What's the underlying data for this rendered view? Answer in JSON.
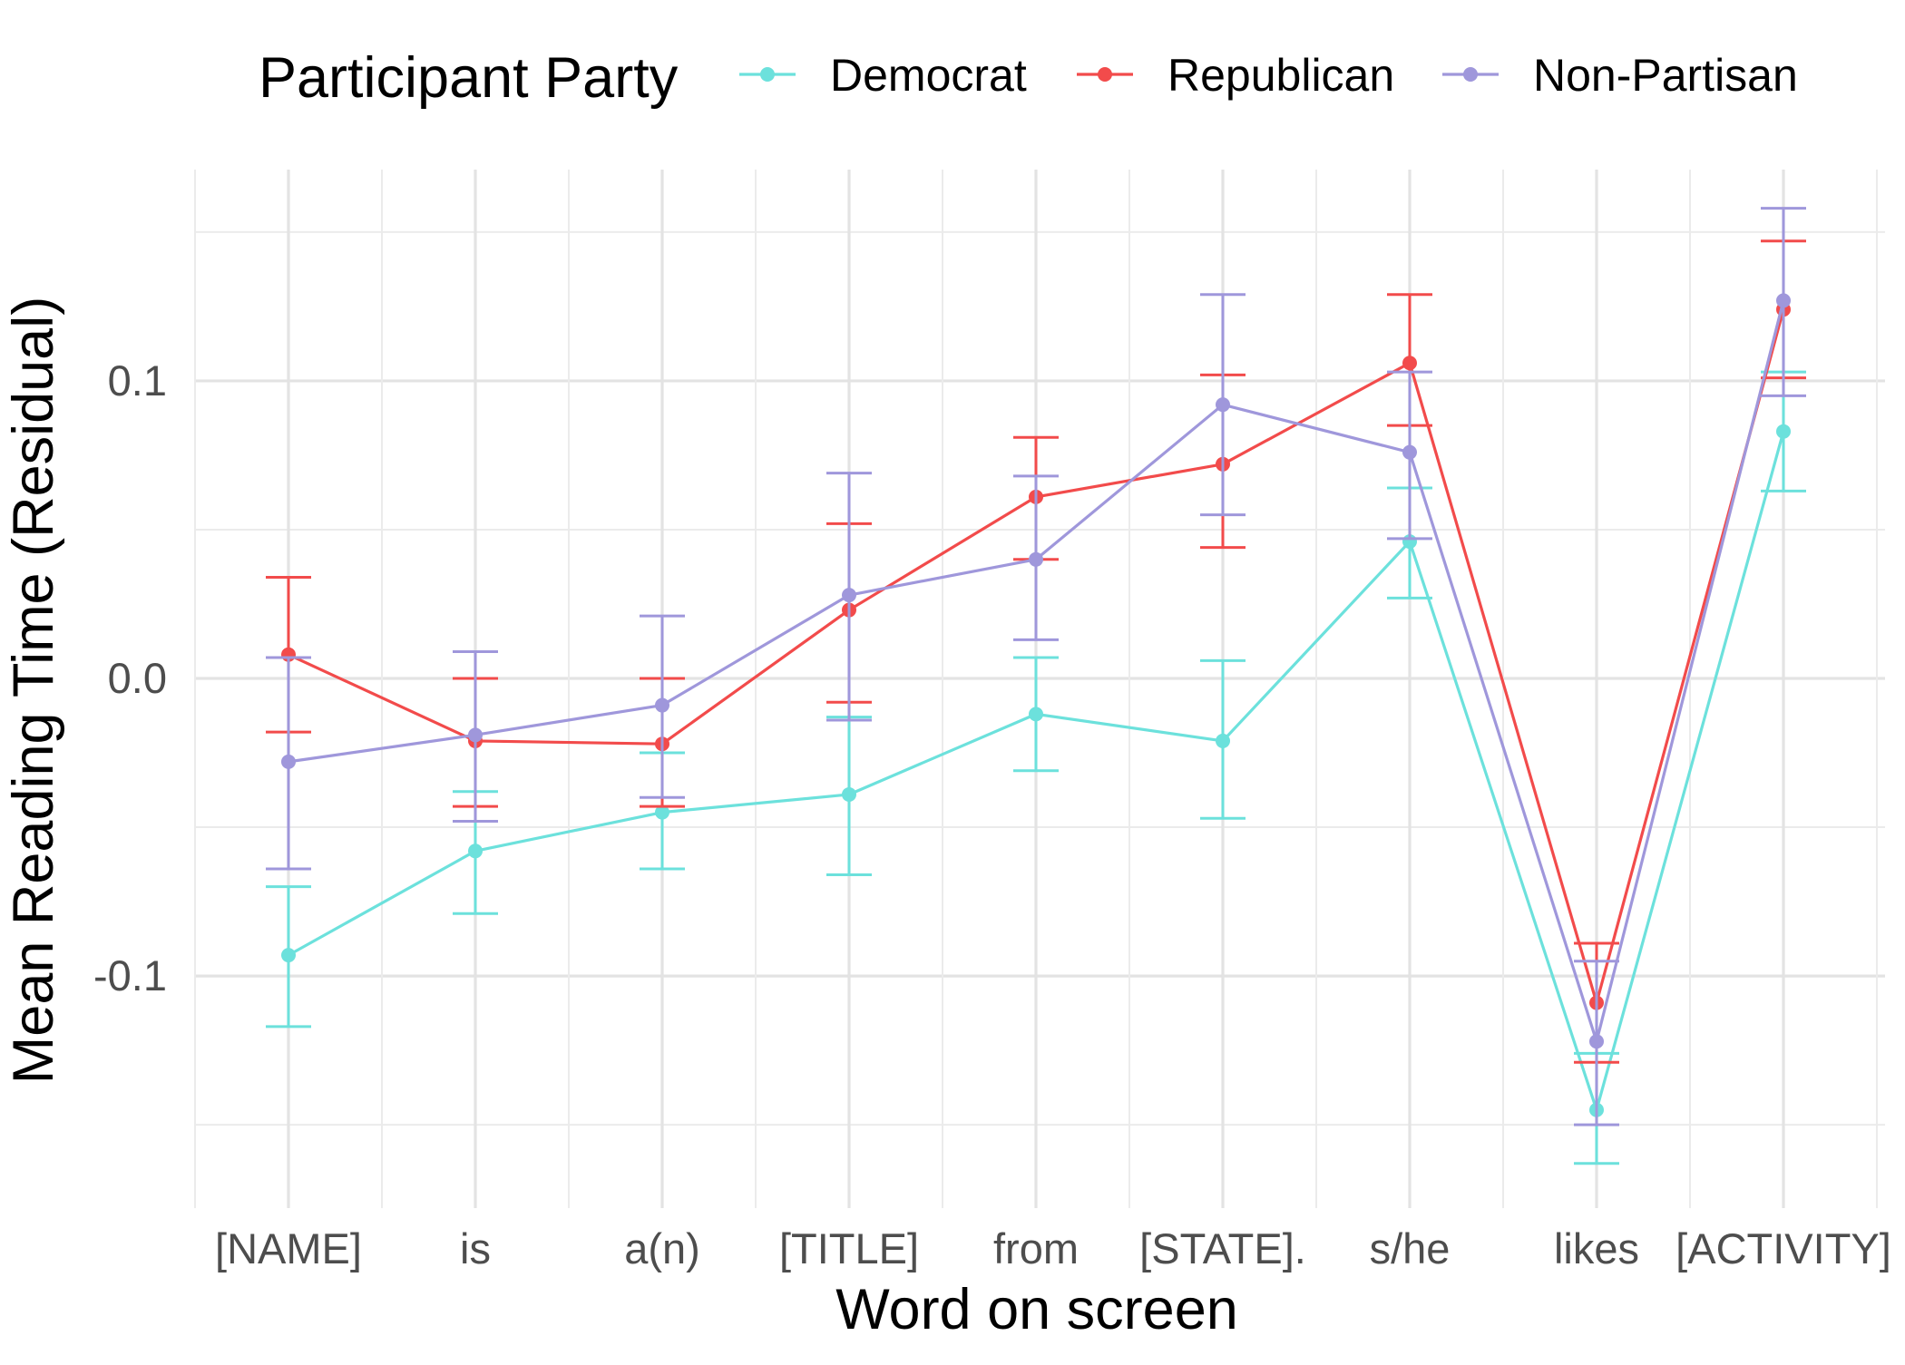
{
  "chart_data": {
    "type": "line",
    "xlabel": "Word on screen",
    "ylabel": "Mean Reading Time (Residual)",
    "legend_title": "Participant Party",
    "legend_position": "top",
    "grid": true,
    "categories": [
      "[NAME]",
      "is",
      "a(n)",
      "[TITLE]",
      "from",
      "[STATE].",
      "s/he",
      "likes",
      "[ACTIVITY]"
    ],
    "ylim": [
      -0.178,
      0.171
    ],
    "yticks": [
      -0.1,
      0.0,
      0.1
    ],
    "ytick_labels": [
      "-0.1",
      "0.0",
      "0.1"
    ],
    "error_bars": true,
    "series": [
      {
        "name": "Democrat",
        "color": "#6ce1dc",
        "values": [
          -0.093,
          -0.058,
          -0.045,
          -0.039,
          -0.012,
          -0.021,
          0.046,
          -0.145,
          0.083
        ],
        "lower": [
          -0.117,
          -0.079,
          -0.064,
          -0.066,
          -0.031,
          -0.047,
          0.027,
          -0.163,
          0.063
        ],
        "upper": [
          -0.07,
          -0.038,
          -0.025,
          -0.013,
          0.007,
          0.006,
          0.064,
          -0.126,
          0.103
        ]
      },
      {
        "name": "Republican",
        "color": "#f24b4b",
        "values": [
          0.008,
          -0.021,
          -0.022,
          0.023,
          0.061,
          0.072,
          0.106,
          -0.109,
          0.124
        ],
        "lower": [
          -0.018,
          -0.043,
          -0.043,
          -0.008,
          0.04,
          0.044,
          0.085,
          -0.129,
          0.101
        ],
        "upper": [
          0.034,
          0.0,
          0.0,
          0.052,
          0.081,
          0.102,
          0.129,
          -0.089,
          0.147
        ]
      },
      {
        "name": "Non-Partisan",
        "color": "#9f97db",
        "values": [
          -0.028,
          -0.019,
          -0.009,
          0.028,
          0.04,
          0.092,
          0.076,
          -0.122,
          0.127
        ],
        "lower": [
          -0.064,
          -0.048,
          -0.04,
          -0.014,
          0.013,
          0.055,
          0.047,
          -0.15,
          0.095
        ],
        "upper": [
          0.007,
          0.009,
          0.021,
          0.069,
          0.068,
          0.129,
          0.103,
          -0.095,
          0.158
        ]
      }
    ]
  }
}
